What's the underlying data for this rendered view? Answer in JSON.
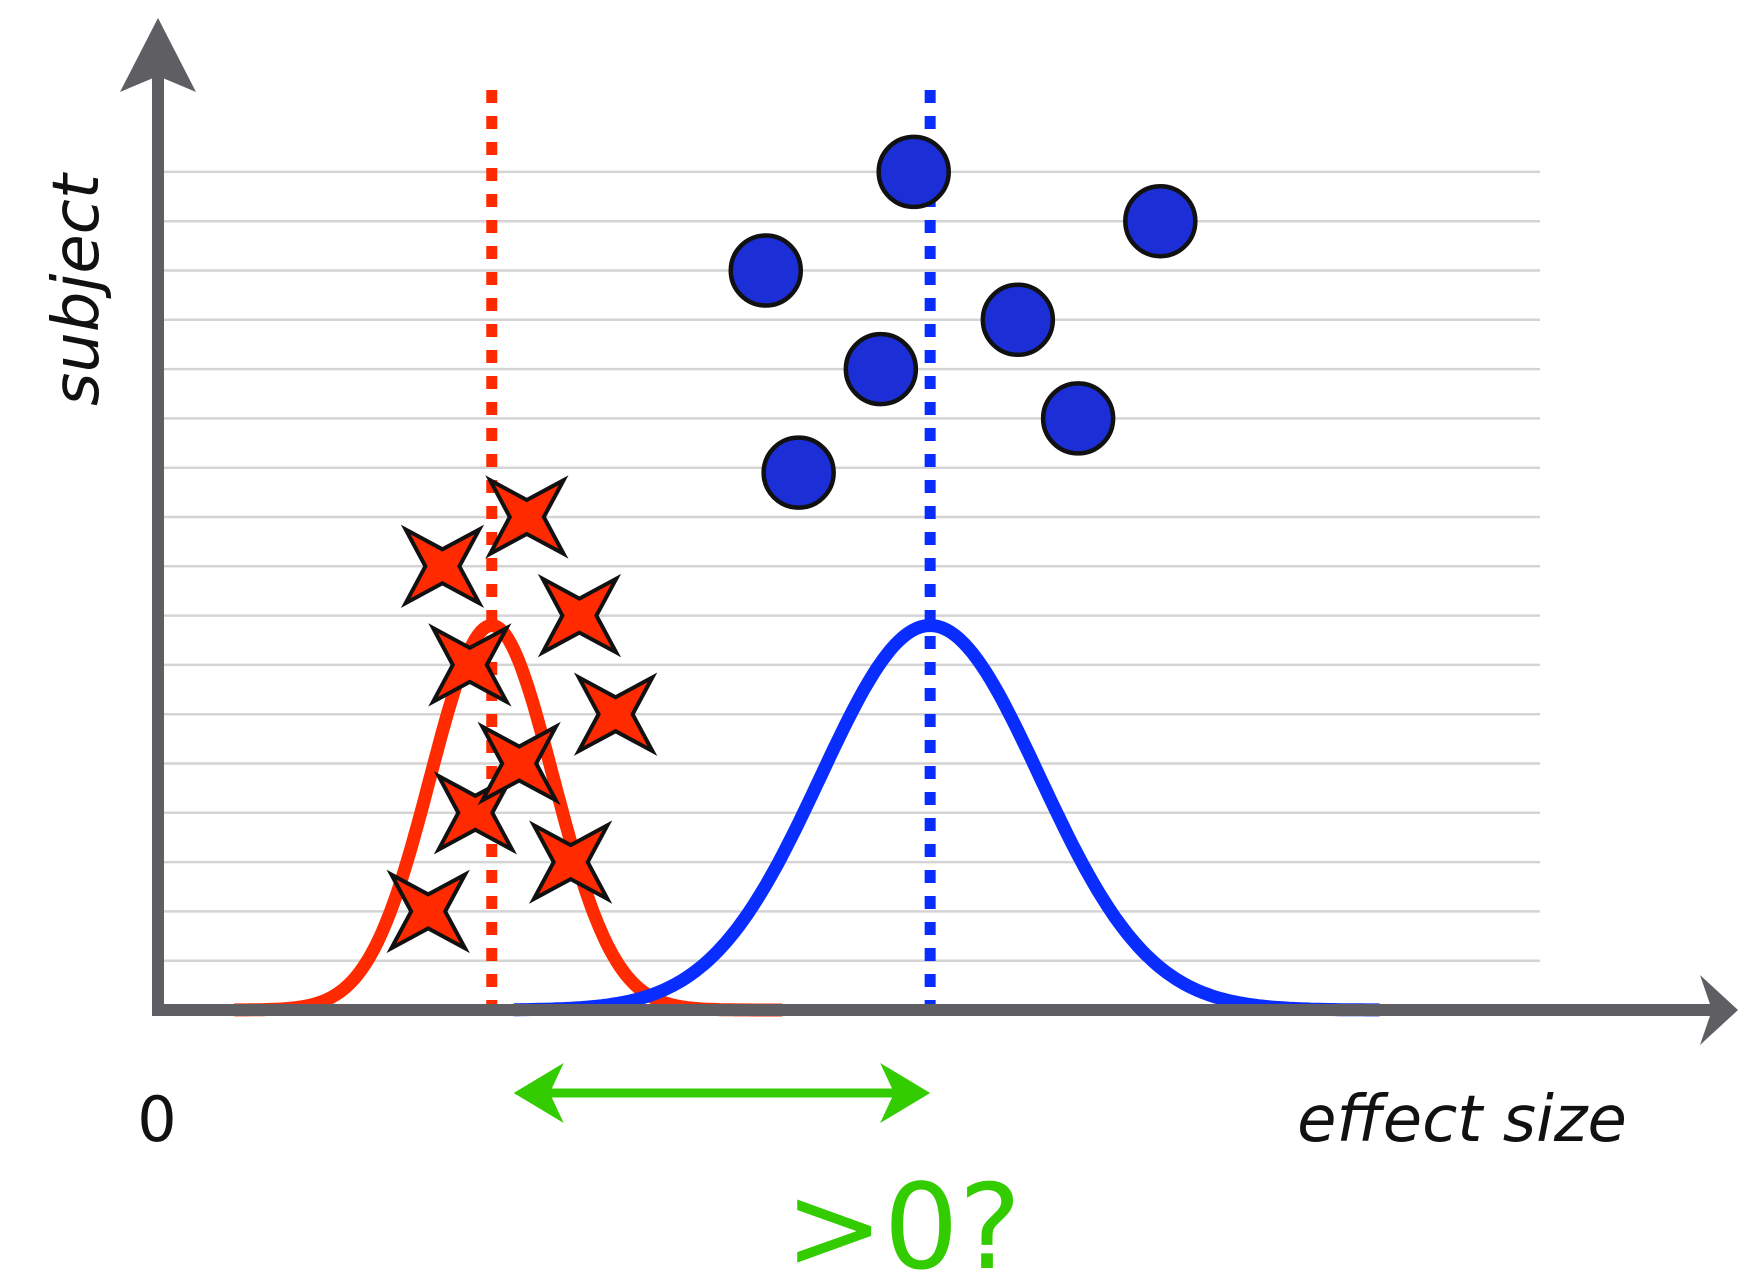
{
  "labels": {
    "y_axis": "subject",
    "x_axis": "effect size",
    "origin": "0",
    "question": ">0?"
  },
  "colors": {
    "axis": "#5f5f63",
    "gridline": "#d4d4d4",
    "red": "#ff2a00",
    "star_fill": "#ff2a00",
    "blue": "#0a2dff",
    "dot_fill": "#1c2fd6",
    "outline": "#111111",
    "green": "#33cc00"
  },
  "chart_data": {
    "type": "scatter",
    "x_range": [
      0,
      100
    ],
    "y_range": [
      0,
      17
    ],
    "gridlines": [
      1,
      2,
      3,
      4,
      5,
      6,
      7,
      8,
      9,
      10,
      11,
      12,
      13,
      14,
      15,
      16,
      17
    ],
    "groups": [
      {
        "marker": "star",
        "color": "red",
        "mean": 31,
        "points": [
          {
            "x": 25.2,
            "y": 2
          },
          {
            "x": 29.5,
            "y": 4
          },
          {
            "x": 33.5,
            "y": 5
          },
          {
            "x": 38.2,
            "y": 3
          },
          {
            "x": 42.3,
            "y": 6
          },
          {
            "x": 29.0,
            "y": 7
          },
          {
            "x": 39.0,
            "y": 8
          },
          {
            "x": 26.5,
            "y": 9
          },
          {
            "x": 34.2,
            "y": 10
          }
        ],
        "curve": {
          "mean": 31,
          "sd": 5.6,
          "x_from": 7.5,
          "x_to": 57.5,
          "peak": 7.8
        }
      },
      {
        "marker": "dot",
        "color": "blue",
        "mean": 71,
        "points": [
          {
            "x": 59.0,
            "y": 10.9
          },
          {
            "x": 66.5,
            "y": 13
          },
          {
            "x": 56.0,
            "y": 15
          },
          {
            "x": 69.5,
            "y": 17
          },
          {
            "x": 79.0,
            "y": 14
          },
          {
            "x": 84.5,
            "y": 12
          },
          {
            "x": 92.0,
            "y": 16
          }
        ],
        "curve": {
          "mean": 71,
          "sd": 10,
          "x_from": 33,
          "x_to": 112,
          "peak": 7.8
        }
      }
    ],
    "difference_arrow": {
      "from": 33,
      "to": 71
    }
  }
}
